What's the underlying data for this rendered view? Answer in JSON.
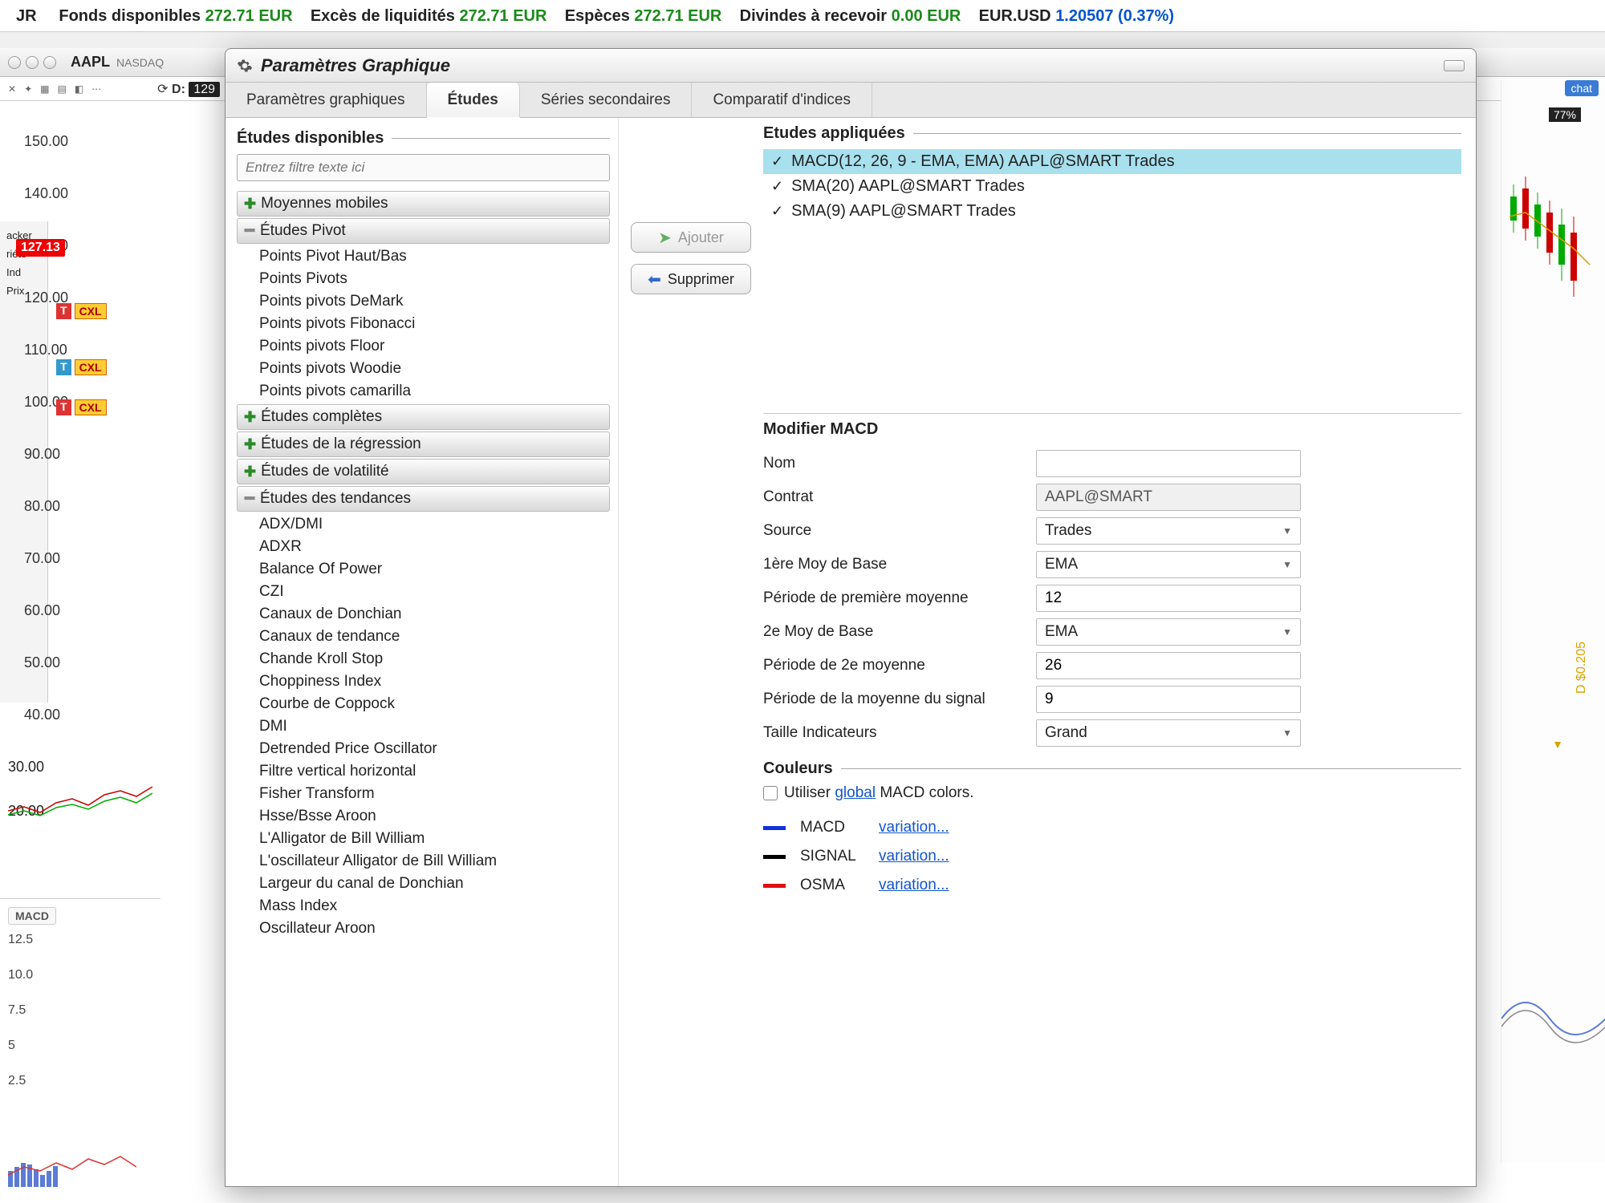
{
  "ticker": {
    "items": [
      {
        "label": "Fonds disponibles",
        "value": "272.71 EUR",
        "cls": "val-green"
      },
      {
        "label": "Excès de liquidités",
        "value": "272.71 EUR",
        "cls": "val-green"
      },
      {
        "label": "Espèces",
        "value": "272.71 EUR",
        "cls": "val-green"
      },
      {
        "label": "Divindes à recevoir",
        "value": "0.00 EUR",
        "cls": "val-green"
      },
      {
        "label": "EUR.USD",
        "value": "1.20507 (0.37%)",
        "cls": "val-blue"
      }
    ],
    "prefix": "JR"
  },
  "bgWindow": {
    "symbol": "AAPL",
    "exchange": "NASDAQ",
    "d_label": "D:",
    "d_value": "129",
    "price_tag": "127.13",
    "yaxis": [
      "150.00",
      "140.00",
      "130.00",
      "120.00",
      "110.00",
      "100.00",
      "90.00",
      "80.00",
      "70.00",
      "60.00",
      "50.00",
      "40.00"
    ],
    "yaxis2": [
      "30.00",
      "20.00"
    ],
    "macd_label": "MACD",
    "macd_ticks": [
      "12.5",
      "10.0",
      "7.5",
      "5",
      "2.5"
    ],
    "left_panel": [
      "acker",
      "riété",
      "Ind",
      "Prix"
    ],
    "cxl": "CXL",
    "t": "T",
    "right_badge": "chat",
    "right_pct": "77%",
    "right_d": "D $0.205"
  },
  "dialog": {
    "title": "Paramètres Graphique",
    "tabs": [
      "Paramètres graphiques",
      "Études",
      "Séries secondaires",
      "Comparatif d'indices"
    ],
    "activeTab": 1,
    "available_title": "Études disponibles",
    "filter_placeholder": "Entrez filtre texte ici",
    "categories": [
      {
        "type": "cat",
        "icon": "plus",
        "label": "Moyennes mobiles"
      },
      {
        "type": "cat",
        "icon": "minus",
        "label": "Études Pivot"
      },
      {
        "type": "item",
        "label": "Points Pivot Haut/Bas"
      },
      {
        "type": "item",
        "label": "Points Pivots"
      },
      {
        "type": "item",
        "label": "Points pivots DeMark"
      },
      {
        "type": "item",
        "label": "Points pivots Fibonacci"
      },
      {
        "type": "item",
        "label": "Points pivots Floor"
      },
      {
        "type": "item",
        "label": "Points pivots Woodie"
      },
      {
        "type": "item",
        "label": "Points pivots camarilla"
      },
      {
        "type": "cat",
        "icon": "plus",
        "label": "Études complètes"
      },
      {
        "type": "cat",
        "icon": "plus",
        "label": "Études de la régression"
      },
      {
        "type": "cat",
        "icon": "plus",
        "label": "Études de volatilité"
      },
      {
        "type": "cat",
        "icon": "minus",
        "label": "Études des tendances"
      },
      {
        "type": "item",
        "label": "ADX/DMI"
      },
      {
        "type": "item",
        "label": "ADXR"
      },
      {
        "type": "item",
        "label": "Balance Of Power"
      },
      {
        "type": "item",
        "label": "CZI"
      },
      {
        "type": "item",
        "label": "Canaux de Donchian"
      },
      {
        "type": "item",
        "label": "Canaux de tendance"
      },
      {
        "type": "item",
        "label": "Chande Kroll Stop"
      },
      {
        "type": "item",
        "label": "Choppiness Index"
      },
      {
        "type": "item",
        "label": "Courbe de Coppock"
      },
      {
        "type": "item",
        "label": "DMI"
      },
      {
        "type": "item",
        "label": "Detrended Price Oscillator"
      },
      {
        "type": "item",
        "label": "Filtre vertical horizontal"
      },
      {
        "type": "item",
        "label": "Fisher Transform"
      },
      {
        "type": "item",
        "label": "Hsse/Bsse Aroon"
      },
      {
        "type": "item",
        "label": "L'Alligator de Bill William"
      },
      {
        "type": "item",
        "label": "L'oscillateur Alligator de Bill William"
      },
      {
        "type": "item",
        "label": "Largeur du canal de Donchian"
      },
      {
        "type": "item",
        "label": "Mass Index"
      },
      {
        "type": "item",
        "label": "Oscillateur Aroon"
      }
    ],
    "btn_add": "Ajouter",
    "btn_remove": "Supprimer",
    "applied_title": "Etudes appliquées",
    "applied": [
      {
        "label": "MACD(12, 26, 9 - EMA, EMA) AAPL@SMART Trades",
        "selected": true
      },
      {
        "label": "SMA(20) AAPL@SMART Trades",
        "selected": false
      },
      {
        "label": "SMA(9) AAPL@SMART Trades",
        "selected": false
      }
    ],
    "modify_title": "Modifier MACD",
    "fields": [
      {
        "label": "Nom",
        "value": "",
        "type": "text"
      },
      {
        "label": "Contrat",
        "value": "AAPL@SMART",
        "type": "readonly"
      },
      {
        "label": "Source",
        "value": "Trades",
        "type": "select"
      },
      {
        "label": "1ère Moy de Base",
        "value": "EMA",
        "type": "select"
      },
      {
        "label": "Période de première moyenne",
        "value": "12",
        "type": "text"
      },
      {
        "label": "2e Moy de Base",
        "value": "EMA",
        "type": "select"
      },
      {
        "label": "Période de 2e moyenne",
        "value": "26",
        "type": "text"
      },
      {
        "label": "Période de la moyenne du signal",
        "value": "9",
        "type": "text"
      },
      {
        "label": "Taille Indicateurs",
        "value": "Grand",
        "type": "select"
      }
    ],
    "colors_title": "Couleurs",
    "use_global_pre": "Utiliser ",
    "use_global_link": "global",
    "use_global_post": " MACD colors.",
    "color_rows": [
      {
        "color": "#1030e0",
        "name": "MACD",
        "link": "variation..."
      },
      {
        "color": "#000000",
        "name": "SIGNAL",
        "link": "variation..."
      },
      {
        "color": "#e01010",
        "name": "OSMA",
        "link": "variation..."
      }
    ]
  }
}
